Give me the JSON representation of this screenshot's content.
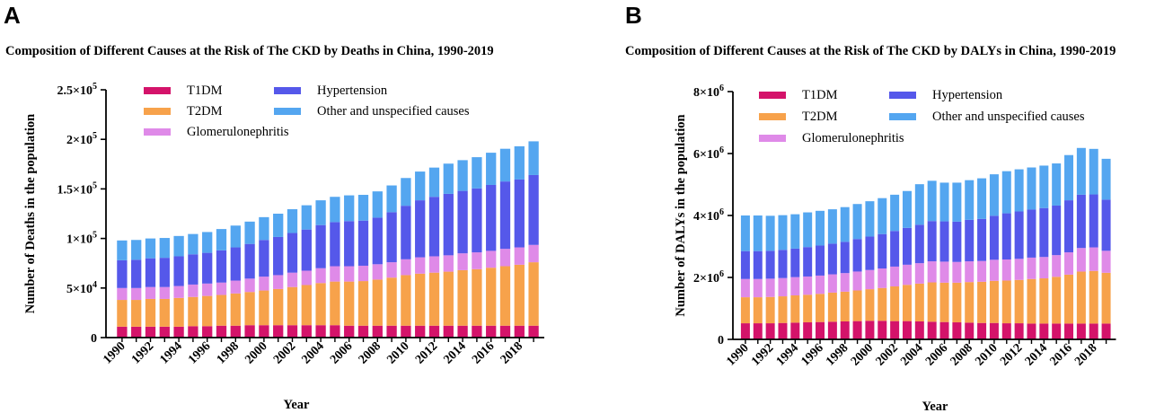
{
  "panels": [
    {
      "letter": "A",
      "title": "Composition of Different Causes at the Risk of The CKD by Deaths in China, 1990-2019"
    },
    {
      "letter": "B",
      "title": "Composition of Different Causes at the Risk of The CKD by DALYs in China, 1990-2019"
    }
  ],
  "legend": [
    {
      "name": "T1DM",
      "color": "#d4136a"
    },
    {
      "name": "T2DM",
      "color": "#f7a24b"
    },
    {
      "name": "Glomerulonephritis",
      "color": "#df8ae8"
    },
    {
      "name": "Hypertension",
      "color": "#5558ea"
    },
    {
      "name": "Other and unspecified causes",
      "color": "#54a6f0"
    }
  ],
  "chart_data": [
    {
      "type": "bar",
      "stacked": true,
      "title": "Composition of Different Causes at the Risk of The CKD by Deaths in China, 1990-2019",
      "xlabel": "Year",
      "ylabel": "Number of Deaths in the population",
      "ylim": [
        0,
        250000
      ],
      "y_ticks": [
        {
          "value": 0,
          "base": "0",
          "exp": ""
        },
        {
          "value": 50000,
          "base": "5×10",
          "exp": "4"
        },
        {
          "value": 100000,
          "base": "1×10",
          "exp": "5"
        },
        {
          "value": 150000,
          "base": "1.5×10",
          "exp": "5"
        },
        {
          "value": 200000,
          "base": "2×10",
          "exp": "5"
        },
        {
          "value": 250000,
          "base": "2.5×10",
          "exp": "5"
        }
      ],
      "x_tick_labels": [
        "1990",
        "1992",
        "1994",
        "1996",
        "1998",
        "2000",
        "2002",
        "2004",
        "2006",
        "2008",
        "2010",
        "2012",
        "2014",
        "2016",
        "2018"
      ],
      "categories": [
        "1990",
        "1991",
        "1992",
        "1993",
        "1994",
        "1995",
        "1996",
        "1997",
        "1998",
        "1999",
        "2000",
        "2001",
        "2002",
        "2003",
        "2004",
        "2005",
        "2006",
        "2007",
        "2008",
        "2009",
        "2010",
        "2011",
        "2012",
        "2013",
        "2014",
        "2015",
        "2016",
        "2017",
        "2018",
        "2019"
      ],
      "series": [
        {
          "name": "T1DM",
          "values": [
            11000,
            11000,
            11000,
            11000,
            11000,
            11500,
            11500,
            12000,
            12000,
            12500,
            12500,
            12500,
            12500,
            12500,
            12500,
            12500,
            12000,
            12000,
            12000,
            12000,
            12000,
            12000,
            12000,
            12000,
            12000,
            12000,
            12000,
            12000,
            12000,
            12000
          ]
        },
        {
          "name": "T2DM",
          "values": [
            27000,
            27000,
            28000,
            28000,
            29000,
            29500,
            30500,
            31000,
            32500,
            33500,
            35000,
            36500,
            38500,
            40500,
            42500,
            44000,
            44500,
            45000,
            46500,
            48500,
            51000,
            52500,
            53500,
            54500,
            56000,
            57000,
            58500,
            60000,
            61500,
            64000
          ]
        },
        {
          "name": "Glomerulonephritis",
          "values": [
            12000,
            12000,
            12000,
            12000,
            12000,
            12500,
            12500,
            12500,
            13000,
            13500,
            14000,
            14000,
            14500,
            14500,
            15000,
            15500,
            15500,
            15500,
            15500,
            15500,
            16000,
            16500,
            16500,
            16500,
            17000,
            17000,
            17000,
            17500,
            17500,
            17500
          ]
        },
        {
          "name": "Hypertension",
          "values": [
            28000,
            28500,
            29000,
            29500,
            30000,
            30500,
            31000,
            32500,
            33500,
            35000,
            37000,
            38500,
            40000,
            41500,
            43500,
            44500,
            45500,
            45500,
            47000,
            50500,
            54000,
            57500,
            60000,
            62000,
            63000,
            64500,
            66500,
            68000,
            68500,
            70500
          ]
        },
        {
          "name": "Other and unspecified causes",
          "values": [
            20000,
            20000,
            20000,
            20000,
            20500,
            20500,
            21000,
            21500,
            22000,
            22500,
            23000,
            23500,
            24000,
            24500,
            25000,
            25500,
            26000,
            26000,
            26500,
            27000,
            28000,
            29000,
            29500,
            30500,
            31000,
            31500,
            32500,
            33000,
            33500,
            34000
          ]
        }
      ]
    },
    {
      "type": "bar",
      "stacked": true,
      "title": "Composition of Different Causes at the Risk of The CKD by DALYs in China, 1990-2019",
      "xlabel": "Year",
      "ylabel": "Number of DALYs in the population",
      "ylim": [
        0,
        8000000
      ],
      "y_ticks": [
        {
          "value": 0,
          "base": "0",
          "exp": ""
        },
        {
          "value": 2000000,
          "base": "2×10",
          "exp": "6"
        },
        {
          "value": 4000000,
          "base": "4×10",
          "exp": "6"
        },
        {
          "value": 6000000,
          "base": "6×10",
          "exp": "6"
        },
        {
          "value": 8000000,
          "base": "8×10",
          "exp": "6"
        }
      ],
      "x_tick_labels": [
        "1990",
        "1992",
        "1994",
        "1996",
        "1998",
        "2000",
        "2002",
        "2004",
        "2006",
        "2008",
        "2010",
        "2012",
        "2014",
        "2016",
        "2018"
      ],
      "categories": [
        "1990",
        "1991",
        "1992",
        "1993",
        "1994",
        "1995",
        "1996",
        "1997",
        "1998",
        "1999",
        "2000",
        "2001",
        "2002",
        "2003",
        "2004",
        "2005",
        "2006",
        "2007",
        "2008",
        "2009",
        "2010",
        "2011",
        "2012",
        "2013",
        "2014",
        "2015",
        "2016",
        "2017",
        "2018",
        "2019"
      ],
      "series": [
        {
          "name": "T1DM",
          "values": [
            520000,
            520000,
            520000,
            530000,
            540000,
            550000,
            560000,
            570000,
            580000,
            590000,
            600000,
            600000,
            590000,
            590000,
            580000,
            570000,
            560000,
            550000,
            540000,
            530000,
            530000,
            520000,
            520000,
            510000,
            510000,
            510000,
            510000,
            510000,
            510000,
            510000
          ]
        },
        {
          "name": "T2DM",
          "values": [
            840000,
            840000,
            850000,
            860000,
            880000,
            890000,
            910000,
            940000,
            960000,
            990000,
            1020000,
            1060000,
            1120000,
            1170000,
            1220000,
            1270000,
            1270000,
            1280000,
            1310000,
            1330000,
            1360000,
            1380000,
            1400000,
            1440000,
            1460000,
            1510000,
            1580000,
            1680000,
            1700000,
            1640000
          ]
        },
        {
          "name": "Glomerulonephritis",
          "values": [
            590000,
            590000,
            590000,
            590000,
            590000,
            590000,
            590000,
            590000,
            600000,
            610000,
            620000,
            630000,
            640000,
            650000,
            660000,
            680000,
            680000,
            670000,
            670000,
            670000,
            680000,
            680000,
            680000,
            690000,
            690000,
            700000,
            720000,
            760000,
            760000,
            710000
          ]
        },
        {
          "name": "Hypertension",
          "values": [
            900000,
            900000,
            900000,
            910000,
            920000,
            950000,
            970000,
            990000,
            1010000,
            1050000,
            1080000,
            1110000,
            1150000,
            1190000,
            1240000,
            1300000,
            1300000,
            1300000,
            1340000,
            1360000,
            1420000,
            1490000,
            1530000,
            1550000,
            1580000,
            1600000,
            1680000,
            1720000,
            1710000,
            1650000
          ]
        },
        {
          "name": "Other and unspecified causes",
          "values": [
            1150000,
            1150000,
            1130000,
            1120000,
            1110000,
            1120000,
            1120000,
            1110000,
            1120000,
            1130000,
            1140000,
            1160000,
            1170000,
            1190000,
            1310000,
            1300000,
            1250000,
            1260000,
            1280000,
            1310000,
            1340000,
            1360000,
            1360000,
            1360000,
            1370000,
            1360000,
            1460000,
            1510000,
            1470000,
            1320000
          ]
        }
      ]
    }
  ]
}
